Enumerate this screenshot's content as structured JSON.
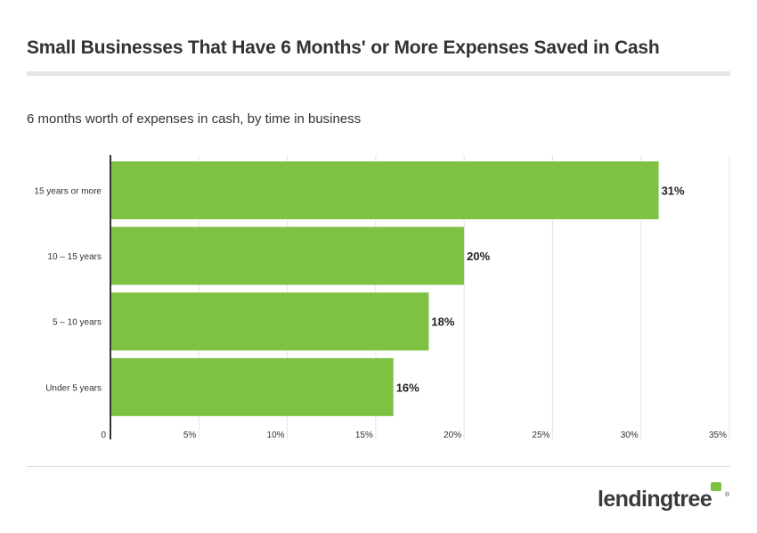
{
  "header": {
    "title": "Small Businesses That Have 6 Months' or More Expenses Saved in Cash",
    "subtitle": "6 months worth of expenses in cash, by time in business"
  },
  "footer": {
    "brand": "lendingtree",
    "brand_mark": "®"
  },
  "colors": {
    "bar": "#7dc242",
    "grid": "#e5e5e5",
    "axis": "#333333",
    "logo_mark": "#7dc242"
  },
  "chart_data": {
    "type": "bar",
    "orientation": "horizontal",
    "categories": [
      "15 years or more",
      "10 – 15 years",
      "5 – 10 years",
      "Under 5 years"
    ],
    "values": [
      31,
      20,
      18,
      16
    ],
    "data_labels": [
      "31%",
      "20%",
      "18%",
      "16%"
    ],
    "x_ticks": [
      "0",
      "5%",
      "10%",
      "15%",
      "20%",
      "25%",
      "30%",
      "35%"
    ],
    "xlim": [
      0,
      35
    ],
    "grid": true,
    "legend": "none"
  }
}
